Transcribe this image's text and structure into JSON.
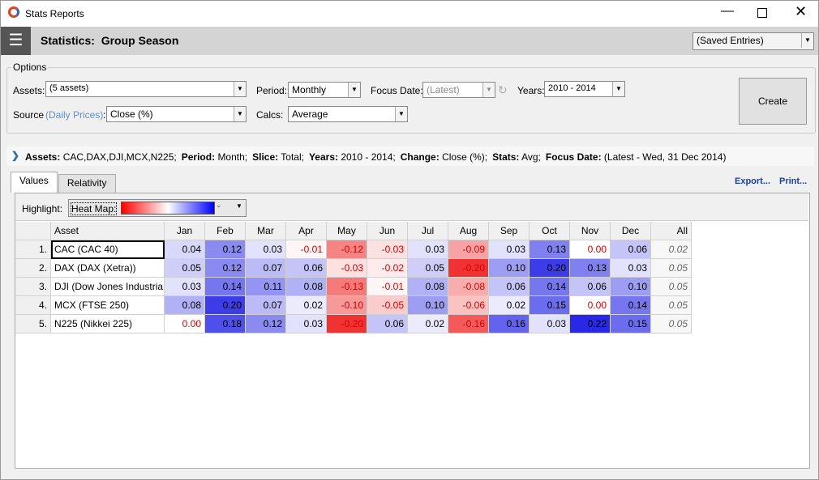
{
  "window": {
    "title": "Stats Reports"
  },
  "header": {
    "title": "Statistics:  Group Season",
    "saved": "(Saved Entries)"
  },
  "options": {
    "legend": "Options",
    "assets_label": "Assets:",
    "assets_value": "(5 assets)",
    "period_label": "Period:",
    "period_value": "Monthly",
    "focus_label": "Focus Date:",
    "focus_value": "(Latest)",
    "years_label": "Years:",
    "years_value": "2010 - 2014",
    "source_label": "Source",
    "source_link": "(Daily Prices)",
    "source_colon": ":",
    "source_value": "Close (%)",
    "calcs_label": "Calcs:",
    "calcs_value": "Average",
    "create": "Create"
  },
  "summary": [
    {
      "label": "Assets:",
      "value": "CAC,DAX,DJI,MCX,N225;"
    },
    {
      "label": "Period:",
      "value": "Month;"
    },
    {
      "label": "Slice:",
      "value": "Total;"
    },
    {
      "label": "Years:",
      "value": "2010 - 2014;"
    },
    {
      "label": "Change:",
      "value": "Close (%);"
    },
    {
      "label": "Stats:",
      "value": "Avg;"
    },
    {
      "label": "Focus Date:",
      "value": "(Latest - Wed, 31 Dec 2014)"
    }
  ],
  "tabs": [
    "Values",
    "Relativity"
  ],
  "actions": [
    "Export...",
    "Print..."
  ],
  "highlight": {
    "label": "Highlight:",
    "value": "Heat Map:"
  },
  "table": {
    "columns": [
      "Asset",
      "Jan",
      "Feb",
      "Mar",
      "Apr",
      "May",
      "Jun",
      "Jul",
      "Aug",
      "Sep",
      "Oct",
      "Nov",
      "Dec",
      "All"
    ],
    "rows": [
      {
        "index": "1.",
        "asset": "CAC (CAC 40)",
        "values": [
          "0.04",
          "0.12",
          "0.03",
          "-0.01",
          "-0.12",
          "-0.03",
          "0.03",
          "-0.09",
          "0.03",
          "0.13",
          "0.00",
          "0.06"
        ],
        "all": "0.02"
      },
      {
        "index": "2.",
        "asset": "DAX (DAX (Xetra))",
        "values": [
          "0.05",
          "0.12",
          "0.07",
          "0.06",
          "-0.03",
          "-0.02",
          "0.05",
          "-0.20",
          "0.10",
          "0.20",
          "0.13",
          "0.03"
        ],
        "all": "0.05"
      },
      {
        "index": "3.",
        "asset": "DJI (Dow Jones Industria",
        "values": [
          "0.03",
          "0.14",
          "0.11",
          "0.08",
          "-0.13",
          "-0.01",
          "0.08",
          "-0.08",
          "0.06",
          "0.14",
          "0.06",
          "0.10"
        ],
        "all": "0.05"
      },
      {
        "index": "4.",
        "asset": "MCX (FTSE 250)",
        "values": [
          "0.08",
          "0.20",
          "0.07",
          "0.02",
          "-0.10",
          "-0.05",
          "0.10",
          "-0.06",
          "0.02",
          "0.15",
          "0.00",
          "0.14"
        ],
        "all": "0.05"
      },
      {
        "index": "5.",
        "asset": "N225 (Nikkei 225)",
        "values": [
          "0.00",
          "0.18",
          "0.12",
          "0.03",
          "-0.20",
          "0.06",
          "0.02",
          "-0.16",
          "0.16",
          "0.03",
          "0.22",
          "0.15"
        ],
        "all": "0.05"
      }
    ]
  }
}
